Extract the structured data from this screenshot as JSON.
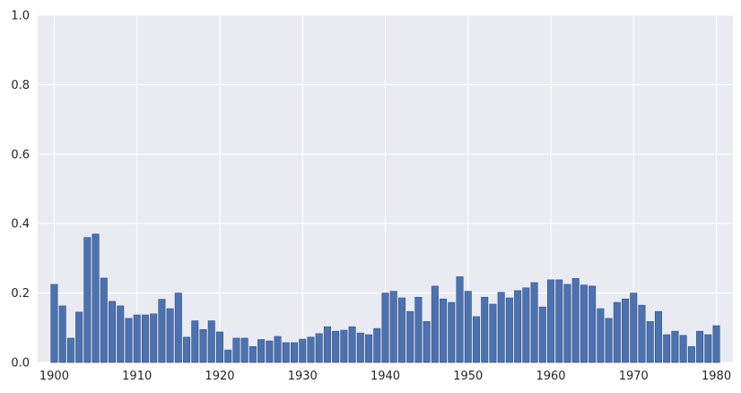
{
  "chart_data": {
    "type": "bar",
    "x": [
      1900,
      1901,
      1902,
      1903,
      1904,
      1905,
      1906,
      1907,
      1908,
      1909,
      1910,
      1911,
      1912,
      1913,
      1914,
      1915,
      1916,
      1917,
      1918,
      1919,
      1920,
      1921,
      1922,
      1923,
      1924,
      1925,
      1926,
      1927,
      1928,
      1929,
      1930,
      1931,
      1932,
      1933,
      1934,
      1935,
      1936,
      1937,
      1938,
      1939,
      1940,
      1941,
      1942,
      1943,
      1944,
      1945,
      1946,
      1947,
      1948,
      1949,
      1950,
      1951,
      1952,
      1953,
      1954,
      1955,
      1956,
      1957,
      1958,
      1959,
      1960,
      1961,
      1962,
      1963,
      1964,
      1965,
      1966,
      1967,
      1968,
      1969,
      1970,
      1971,
      1972,
      1973,
      1974,
      1975,
      1976,
      1977,
      1978,
      1979,
      1980
    ],
    "values": [
      0.225,
      0.163,
      0.07,
      0.145,
      0.36,
      0.37,
      0.243,
      0.176,
      0.163,
      0.127,
      0.137,
      0.137,
      0.14,
      0.182,
      0.155,
      0.2,
      0.073,
      0.12,
      0.095,
      0.12,
      0.088,
      0.036,
      0.07,
      0.07,
      0.046,
      0.066,
      0.062,
      0.075,
      0.057,
      0.057,
      0.067,
      0.073,
      0.083,
      0.103,
      0.09,
      0.093,
      0.103,
      0.085,
      0.08,
      0.098,
      0.2,
      0.205,
      0.186,
      0.147,
      0.188,
      0.118,
      0.22,
      0.183,
      0.173,
      0.247,
      0.205,
      0.132,
      0.188,
      0.168,
      0.202,
      0.186,
      0.207,
      0.215,
      0.23,
      0.16,
      0.238,
      0.238,
      0.225,
      0.242,
      0.223,
      0.22,
      0.155,
      0.127,
      0.173,
      0.183,
      0.2,
      0.165,
      0.118,
      0.147,
      0.08,
      0.09,
      0.078,
      0.046,
      0.09,
      0.08,
      0.106
    ],
    "xticks": [
      "1900",
      "1910",
      "1920",
      "1930",
      "1940",
      "1950",
      "1960",
      "1970",
      "1980"
    ],
    "xtick_values": [
      1900,
      1910,
      1920,
      1930,
      1940,
      1950,
      1960,
      1970,
      1980
    ],
    "yticks": [
      "0.0",
      "0.2",
      "0.4",
      "0.6",
      "0.8",
      "1.0"
    ],
    "ytick_values": [
      0,
      0.2,
      0.4,
      0.6,
      0.8,
      1.0
    ],
    "xlim": [
      1898,
      1982
    ],
    "ylim": [
      0,
      1.0
    ],
    "title": "",
    "xlabel": "",
    "ylabel": "",
    "grid": true,
    "colors": {
      "bar": "#4c72b0",
      "bar_edge": "#2f4f80",
      "plot_background": "#eaeaf2",
      "grid": "#ffffff"
    }
  }
}
